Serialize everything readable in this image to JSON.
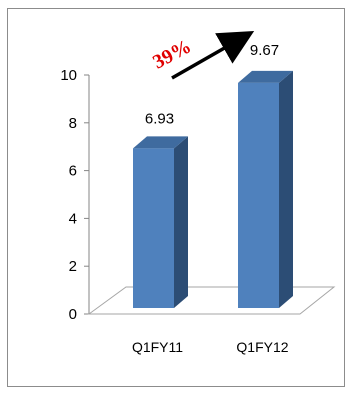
{
  "chart_data": {
    "type": "bar",
    "categories": [
      "Q1FY11",
      "Q1FY12"
    ],
    "values": [
      6.93,
      9.67
    ],
    "data_labels": [
      "6.93",
      "9.67"
    ],
    "y_ticks": [
      "0",
      "2",
      "4",
      "6",
      "8",
      "10"
    ],
    "ylim": [
      0,
      10
    ],
    "grid": false,
    "legend": "none",
    "style": "3d-column",
    "annotations": [
      {
        "text": "39%",
        "color": "#e00000",
        "arrow": true
      }
    ],
    "colors": {
      "bar_front": "#4f81bd",
      "bar_side": "#2c4d75",
      "bar_top": "#3f6b9f"
    }
  }
}
